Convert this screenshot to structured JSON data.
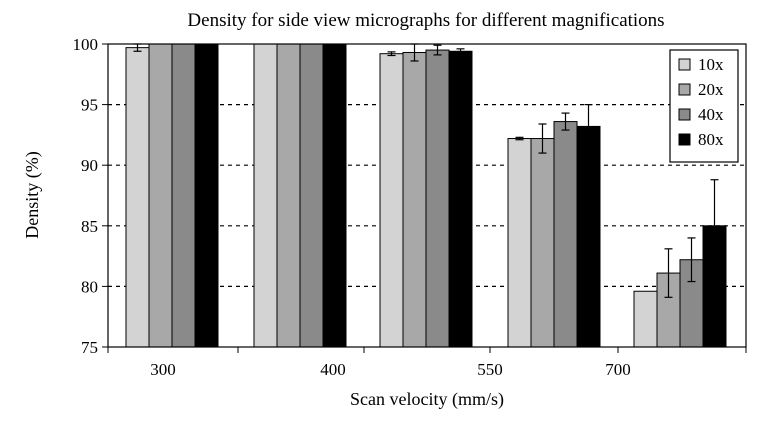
{
  "chart_data": {
    "type": "bar",
    "title": "Density for side view micrographs for different magnifications",
    "xlabel": "Scan velocity (mm/s)",
    "ylabel": "Density (%)",
    "ylim": [
      75,
      100
    ],
    "yticks": [
      "75",
      "80",
      "85",
      "90",
      "95",
      "100"
    ],
    "grid": "horizontal dashed",
    "legend_position": "top-right",
    "categories": [
      "300",
      "400",
      "550",
      "700"
    ],
    "series": [
      {
        "name": "10x",
        "color": "#d3d3d3",
        "values": [
          99.7,
          100.0,
          99.2,
          92.2
        ],
        "errors": [
          0.3,
          0.0,
          0.15,
          0.1
        ]
      },
      {
        "name": "20x",
        "color": "#a8a8a8",
        "values": [
          100.0,
          100.0,
          99.3,
          92.2
        ],
        "errors": [
          0.0,
          0.0,
          0.7,
          1.2
        ]
      },
      {
        "name": "40x",
        "color": "#8a8a8a",
        "values": [
          100.0,
          100.0,
          99.5,
          93.6
        ],
        "errors": [
          0.0,
          0.0,
          0.4,
          0.7
        ]
      },
      {
        "name": "80x",
        "color": "#000000",
        "values": [
          100.0,
          100.0,
          99.4,
          93.2
        ],
        "errors": [
          0.0,
          0.0,
          0.2,
          1.8
        ]
      }
    ],
    "extra_group": {
      "values": [
        79.6,
        81.1,
        82.2,
        85.0
      ],
      "errors": [
        0.0,
        2.0,
        1.8,
        3.8
      ]
    }
  }
}
